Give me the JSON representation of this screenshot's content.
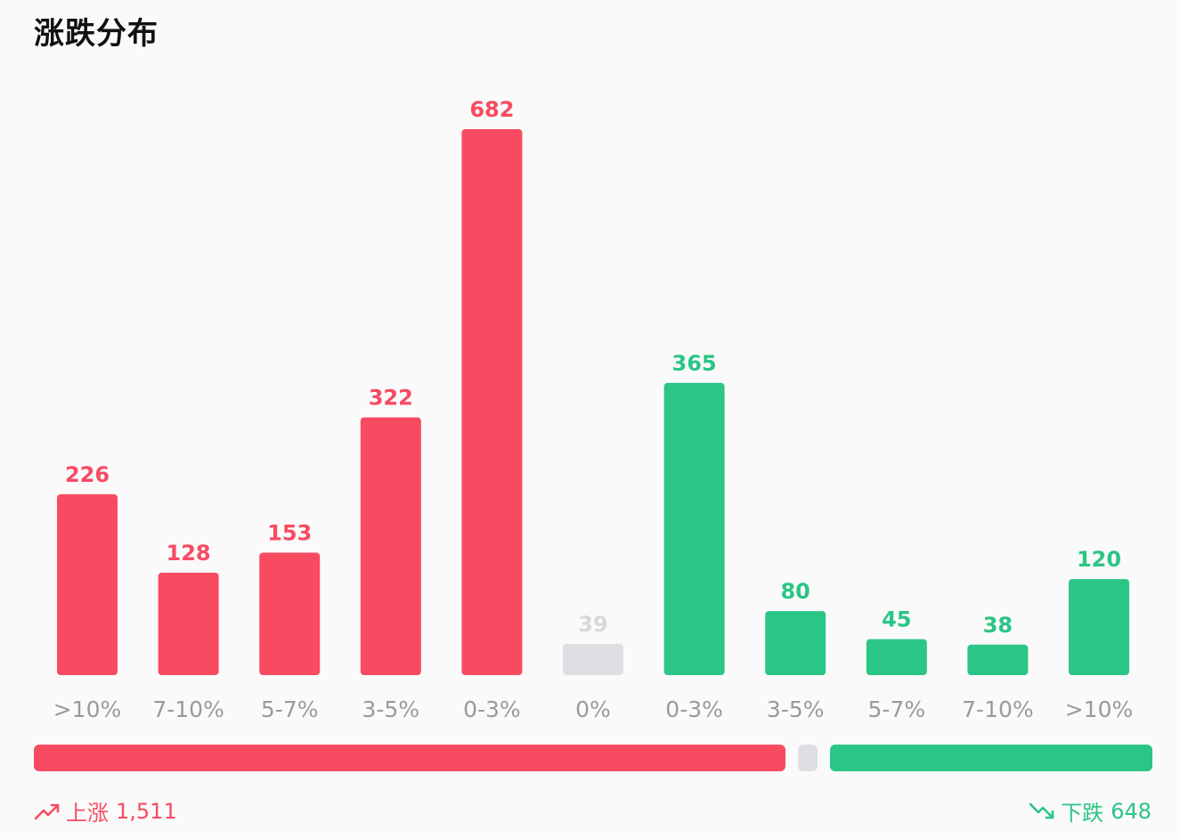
{
  "title": "涨跌分布",
  "colors": {
    "up": "#f84b62",
    "flat": "#dddfe2",
    "down": "#2bc585",
    "flat_label": "#d8d8d8"
  },
  "chart_data": {
    "type": "bar",
    "title": "涨跌分布",
    "categories": [
      ">10%",
      "7-10%",
      "5-7%",
      "3-5%",
      "0-3%",
      "0%",
      "0-3%",
      "3-5%",
      "5-7%",
      "7-10%",
      ">10%"
    ],
    "values": [
      226,
      128,
      153,
      322,
      682,
      39,
      365,
      80,
      45,
      38,
      120
    ],
    "groups": [
      "up",
      "up",
      "up",
      "up",
      "up",
      "flat",
      "down",
      "down",
      "down",
      "down",
      "down"
    ],
    "ylim": [
      0,
      682
    ],
    "grid": false,
    "data_labels": true
  },
  "summary": {
    "up_label": "上涨",
    "up_count": 1511,
    "up_count_text": "1,511",
    "flat_count": 39,
    "down_label": "下跌",
    "down_count": 648,
    "down_count_text": "648"
  },
  "icons": {
    "up": "trending-up-icon",
    "down": "trending-down-icon"
  }
}
